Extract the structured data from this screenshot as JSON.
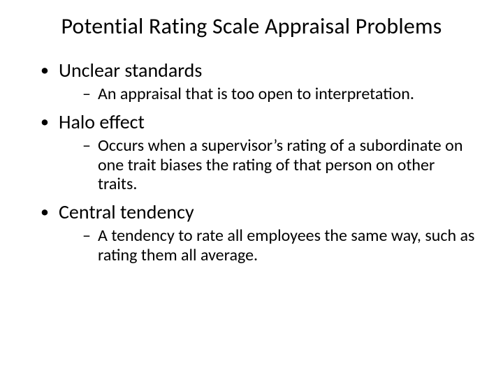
{
  "slide": {
    "background_color": "#ffffff",
    "text_color": "#000000",
    "font_family": "Calibri",
    "title": "Potential Rating Scale Appraisal Problems",
    "title_fontsize": 32,
    "bullets": [
      {
        "text": "Unclear standards",
        "fontsize": 28,
        "sub": [
          {
            "text": "An appraisal that is too open to interpretation.",
            "fontsize": 24
          }
        ]
      },
      {
        "text": "Halo effect",
        "fontsize": 28,
        "sub": [
          {
            "text": "Occurs when a supervisor’s rating of a subordinate on one trait biases the rating of that person on other traits.",
            "fontsize": 24
          }
        ]
      },
      {
        "text": "Central tendency",
        "fontsize": 28,
        "sub": [
          {
            "text": "A tendency to rate all employees the same way, such as rating them all average.",
            "fontsize": 24
          }
        ]
      }
    ]
  }
}
